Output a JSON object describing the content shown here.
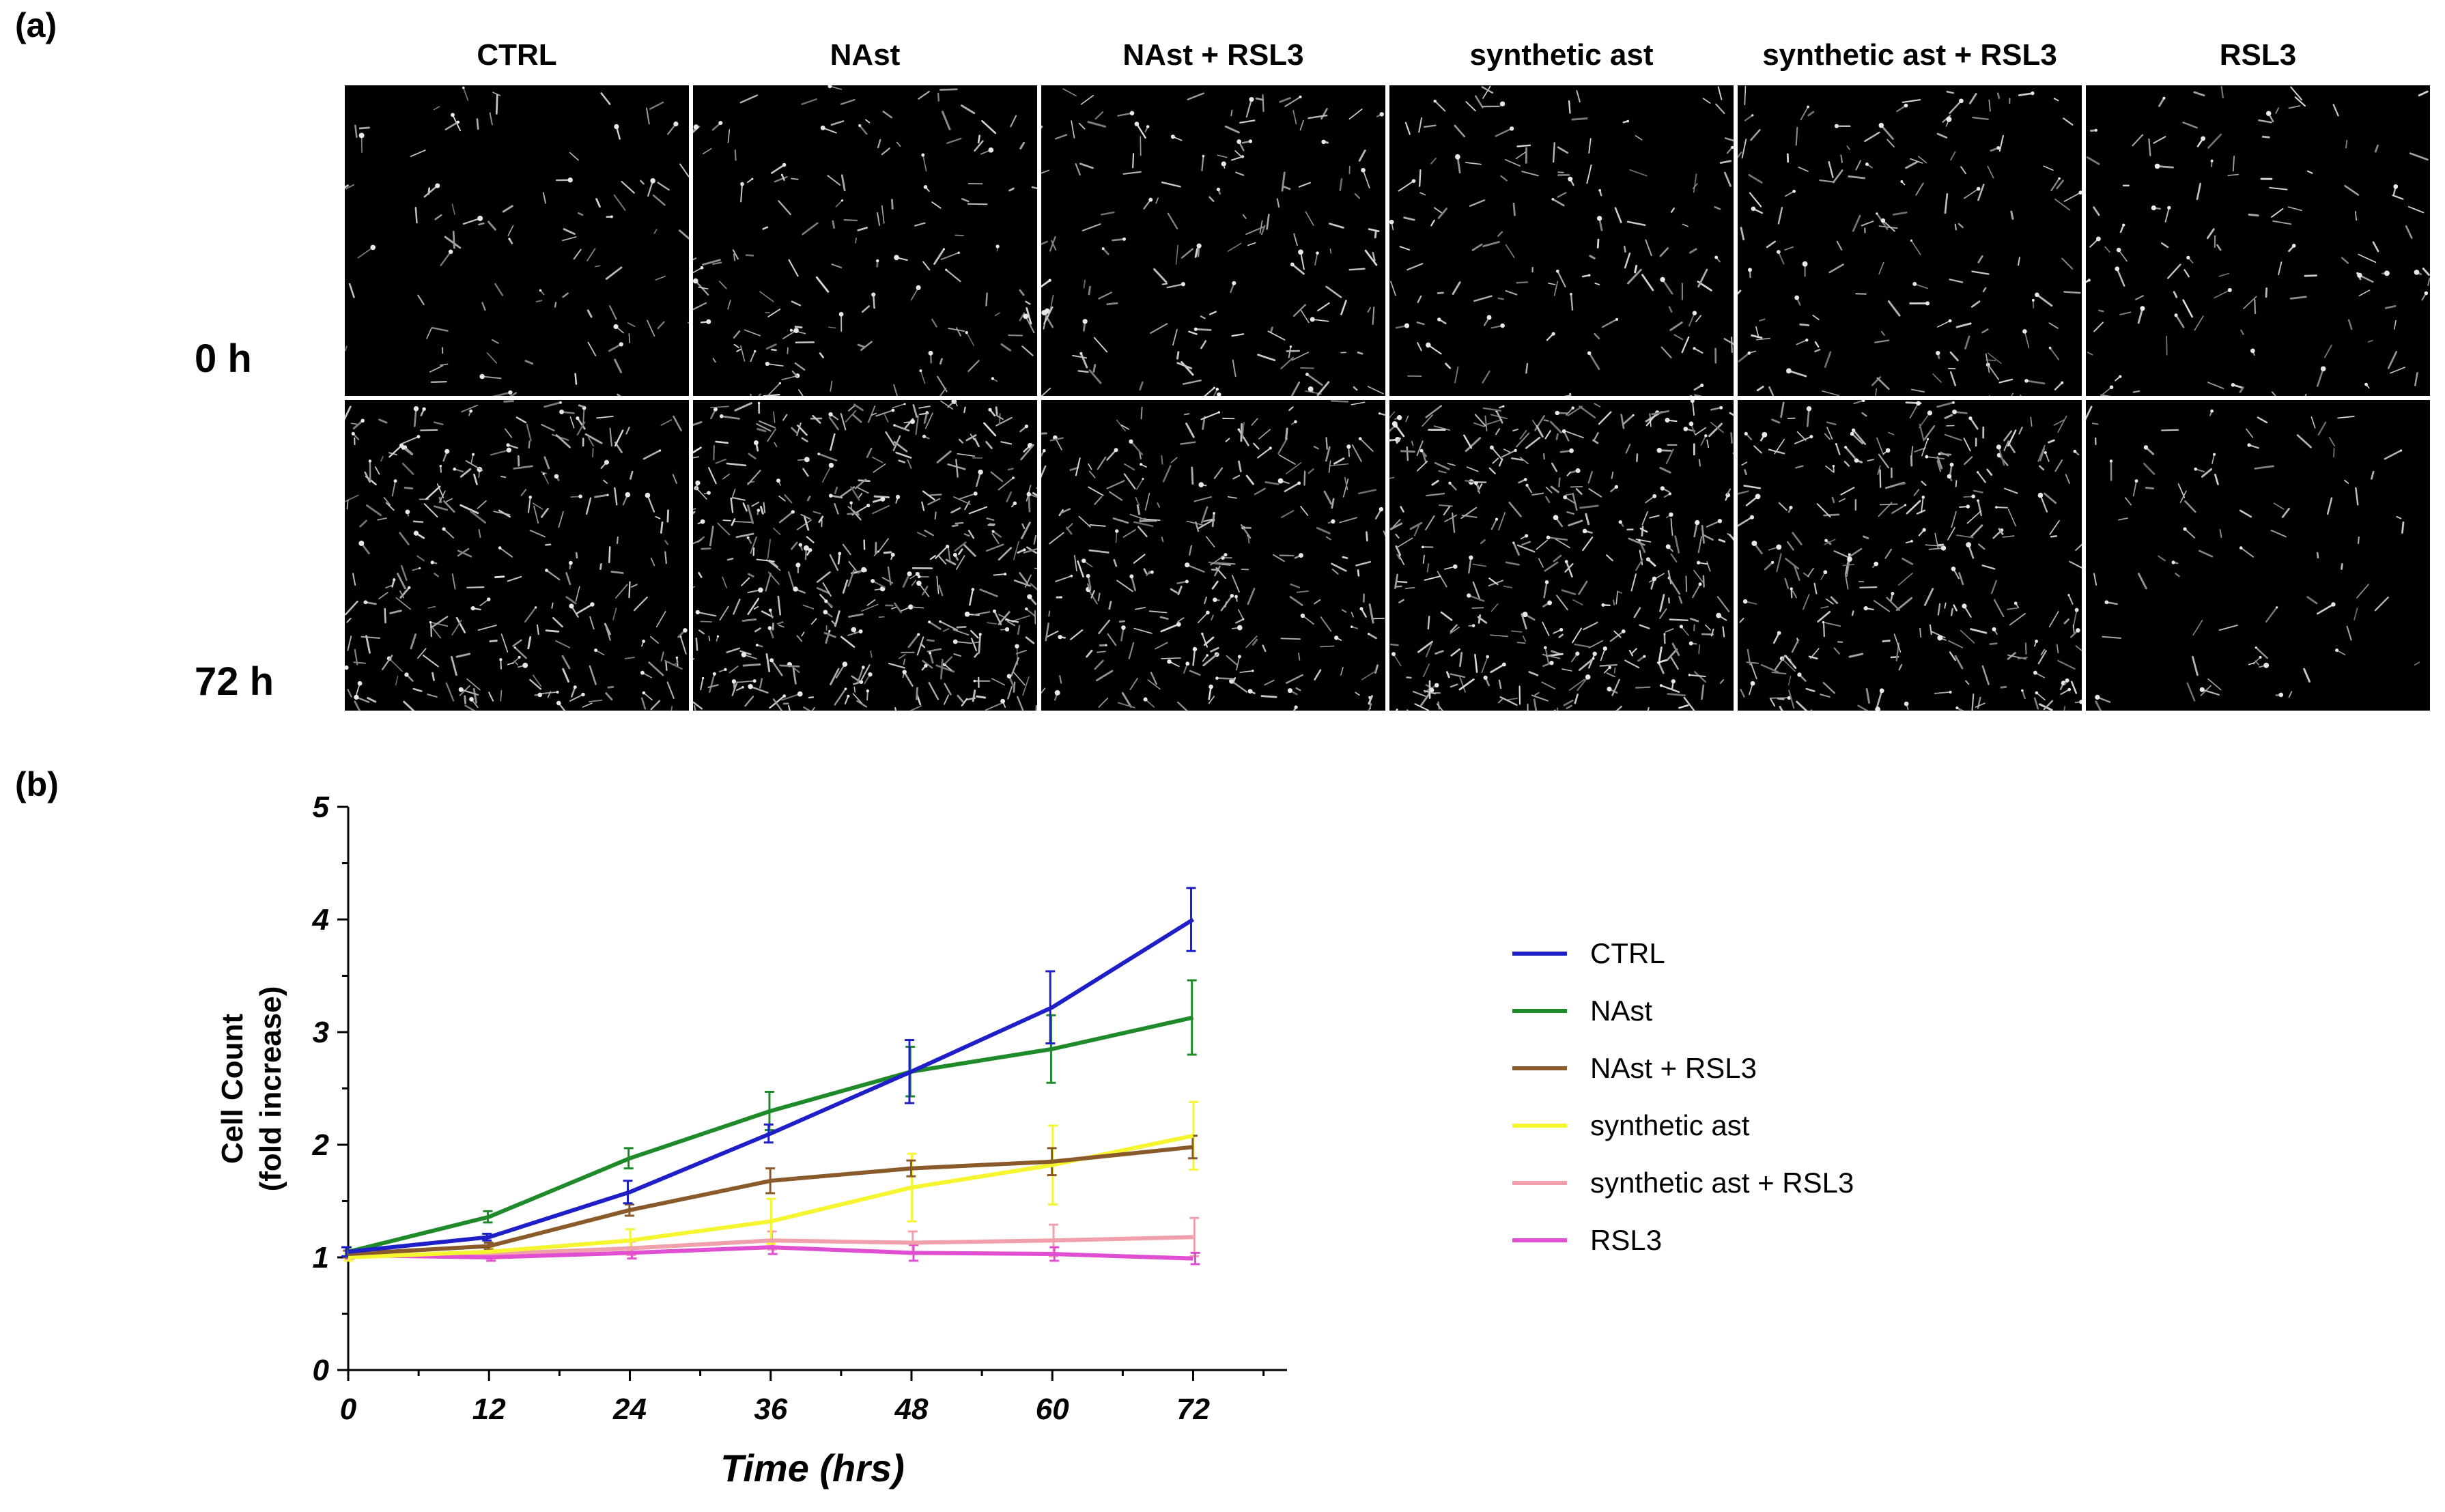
{
  "panel_a": {
    "label": "(a)",
    "columns": [
      "CTRL",
      "NAst",
      "NAst + RSL3",
      "synthetic ast",
      "synthetic ast + RSL3",
      "RSL3"
    ],
    "rows": [
      "0 h",
      "72 h"
    ]
  },
  "panel_b": {
    "label": "(b)"
  },
  "chart_data": {
    "type": "line",
    "title": "",
    "xlabel": "Time (hrs)",
    "ylabel": "Cell Count (fold increase)",
    "ylabel_lines": [
      "Cell Count",
      "(fold increase)"
    ],
    "x": [
      0,
      12,
      24,
      36,
      48,
      60,
      72
    ],
    "xticks": [
      "0",
      "12",
      "24",
      "36",
      "48",
      "60",
      "72"
    ],
    "yticks": [
      "0",
      "1",
      "2",
      "3",
      "4",
      "5"
    ],
    "xlim": [
      0,
      80
    ],
    "ylim": [
      0,
      5
    ],
    "grid": false,
    "legend": "right",
    "series": [
      {
        "name": "CTRL",
        "color": "#1f1fc8",
        "values": [
          1.05,
          1.18,
          1.58,
          2.1,
          2.65,
          3.22,
          4.0
        ],
        "errors": [
          0.04,
          0.03,
          0.1,
          0.08,
          0.28,
          0.32,
          0.28
        ]
      },
      {
        "name": "NAst",
        "color": "#1f8a2a",
        "values": [
          1.05,
          1.36,
          1.88,
          2.3,
          2.65,
          2.85,
          3.13
        ],
        "errors": [
          0.04,
          0.05,
          0.09,
          0.17,
          0.22,
          0.3,
          0.33
        ]
      },
      {
        "name": "NAst + RSL3",
        "color": "#8b5a2b",
        "values": [
          1.03,
          1.1,
          1.42,
          1.68,
          1.79,
          1.85,
          1.98
        ],
        "errors": [
          0.03,
          0.03,
          0.05,
          0.11,
          0.07,
          0.12,
          0.1
        ]
      },
      {
        "name": "synthetic ast",
        "color": "#f5f530",
        "values": [
          1.0,
          1.05,
          1.15,
          1.32,
          1.62,
          1.82,
          2.08
        ],
        "errors": [
          0.03,
          0.04,
          0.1,
          0.2,
          0.3,
          0.35,
          0.3
        ]
      },
      {
        "name": "synthetic ast + RSL3",
        "color": "#f0a0aa",
        "values": [
          1.02,
          1.03,
          1.08,
          1.15,
          1.13,
          1.15,
          1.18
        ],
        "errors": [
          0.03,
          0.03,
          0.06,
          0.08,
          0.1,
          0.14,
          0.17
        ]
      },
      {
        "name": "RSL3",
        "color": "#e04ed2",
        "values": [
          1.02,
          1.0,
          1.04,
          1.09,
          1.04,
          1.03,
          0.99
        ],
        "errors": [
          0.03,
          0.03,
          0.05,
          0.06,
          0.07,
          0.06,
          0.05
        ]
      }
    ]
  }
}
